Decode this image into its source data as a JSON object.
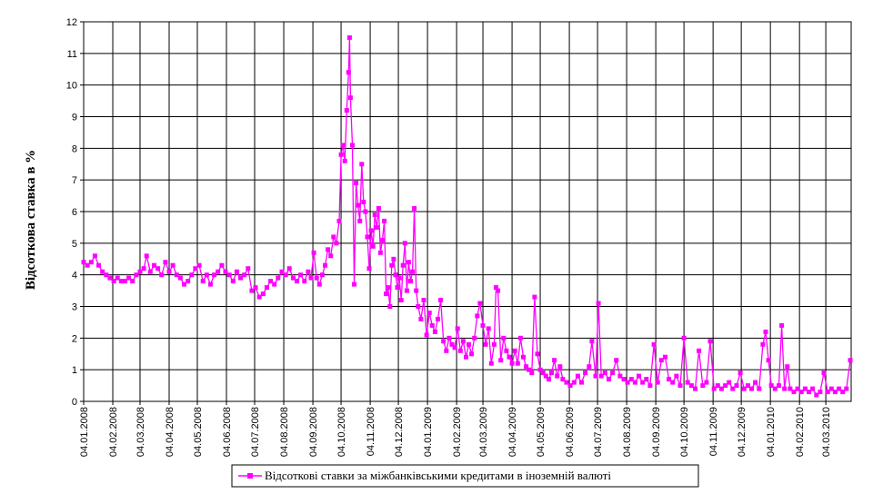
{
  "chart_data": {
    "type": "line",
    "title": "",
    "xlabel": "",
    "ylabel": "Відсоткова ставка в %",
    "ylim": [
      0,
      12
    ],
    "yticks": [
      0,
      1,
      2,
      3,
      4,
      5,
      6,
      7,
      8,
      9,
      10,
      11,
      12
    ],
    "xlim": [
      "2008-01-04",
      "2010-03-31"
    ],
    "xticks": [
      "04.01.2008",
      "04.02.2008",
      "04.03.2008",
      "04.04.2008",
      "04.05.2008",
      "04.06.2008",
      "04.07.2008",
      "04.08.2008",
      "04.09.2008",
      "04.10.2008",
      "04.11.2008",
      "04.12.2008",
      "04.01.2009",
      "04.02.2009",
      "04.03.2009",
      "04.04.2009",
      "04.05.2009",
      "04.06.2009",
      "04.07.2009",
      "04.08.2009",
      "04.09.2009",
      "04.10.2009",
      "04.11.2009",
      "04.12.2009",
      "04.01.2010",
      "04.02.2010",
      "04.03.2010"
    ],
    "grid": true,
    "legend": "bottom",
    "series": [
      {
        "name": "Відсоткові ставки за міжбанківськими кредитами в іноземній валюті",
        "color": "#ff00ff",
        "marker": "square",
        "points": [
          [
            "2008-01-04",
            4.4
          ],
          [
            "2008-01-08",
            4.3
          ],
          [
            "2008-01-12",
            4.4
          ],
          [
            "2008-01-16",
            4.6
          ],
          [
            "2008-01-20",
            4.3
          ],
          [
            "2008-01-24",
            4.1
          ],
          [
            "2008-01-28",
            4.0
          ],
          [
            "2008-02-01",
            3.9
          ],
          [
            "2008-02-05",
            3.8
          ],
          [
            "2008-02-09",
            3.9
          ],
          [
            "2008-02-13",
            3.8
          ],
          [
            "2008-02-17",
            3.8
          ],
          [
            "2008-02-21",
            3.9
          ],
          [
            "2008-02-25",
            3.8
          ],
          [
            "2008-02-29",
            4.0
          ],
          [
            "2008-03-04",
            4.1
          ],
          [
            "2008-03-08",
            4.2
          ],
          [
            "2008-03-11",
            4.6
          ],
          [
            "2008-03-15",
            4.1
          ],
          [
            "2008-03-19",
            4.3
          ],
          [
            "2008-03-23",
            4.2
          ],
          [
            "2008-03-27",
            4.0
          ],
          [
            "2008-03-31",
            4.4
          ],
          [
            "2008-04-04",
            4.1
          ],
          [
            "2008-04-08",
            4.3
          ],
          [
            "2008-04-12",
            4.0
          ],
          [
            "2008-04-16",
            3.9
          ],
          [
            "2008-04-20",
            3.7
          ],
          [
            "2008-04-24",
            3.8
          ],
          [
            "2008-04-28",
            4.0
          ],
          [
            "2008-05-02",
            4.2
          ],
          [
            "2008-05-06",
            4.3
          ],
          [
            "2008-05-10",
            3.8
          ],
          [
            "2008-05-14",
            4.0
          ],
          [
            "2008-05-18",
            3.7
          ],
          [
            "2008-05-22",
            4.0
          ],
          [
            "2008-05-26",
            4.1
          ],
          [
            "2008-05-30",
            4.3
          ],
          [
            "2008-06-03",
            4.1
          ],
          [
            "2008-06-07",
            4.0
          ],
          [
            "2008-06-11",
            3.8
          ],
          [
            "2008-06-15",
            4.1
          ],
          [
            "2008-06-19",
            3.9
          ],
          [
            "2008-06-23",
            4.0
          ],
          [
            "2008-06-27",
            4.2
          ],
          [
            "2008-07-01",
            3.5
          ],
          [
            "2008-07-05",
            3.6
          ],
          [
            "2008-07-09",
            3.3
          ],
          [
            "2008-07-13",
            3.4
          ],
          [
            "2008-07-17",
            3.6
          ],
          [
            "2008-07-21",
            3.8
          ],
          [
            "2008-07-25",
            3.7
          ],
          [
            "2008-07-29",
            3.9
          ],
          [
            "2008-08-02",
            4.1
          ],
          [
            "2008-08-06",
            4.0
          ],
          [
            "2008-08-10",
            4.2
          ],
          [
            "2008-08-14",
            3.9
          ],
          [
            "2008-08-18",
            3.8
          ],
          [
            "2008-08-22",
            4.0
          ],
          [
            "2008-08-26",
            3.8
          ],
          [
            "2008-08-30",
            4.1
          ],
          [
            "2008-09-02",
            3.9
          ],
          [
            "2008-09-05",
            4.7
          ],
          [
            "2008-09-08",
            3.9
          ],
          [
            "2008-09-11",
            3.7
          ],
          [
            "2008-09-14",
            4.0
          ],
          [
            "2008-09-17",
            4.3
          ],
          [
            "2008-09-20",
            4.8
          ],
          [
            "2008-09-23",
            4.6
          ],
          [
            "2008-09-26",
            5.2
          ],
          [
            "2008-09-29",
            5.0
          ],
          [
            "2008-10-02",
            5.7
          ],
          [
            "2008-10-04",
            7.8
          ],
          [
            "2008-10-06",
            8.1
          ],
          [
            "2008-10-08",
            7.6
          ],
          [
            "2008-10-10",
            9.2
          ],
          [
            "2008-10-12",
            10.4
          ],
          [
            "2008-10-13",
            11.5
          ],
          [
            "2008-10-14",
            9.6
          ],
          [
            "2008-10-16",
            8.1
          ],
          [
            "2008-10-18",
            3.7
          ],
          [
            "2008-10-20",
            6.9
          ],
          [
            "2008-10-22",
            6.2
          ],
          [
            "2008-10-24",
            5.7
          ],
          [
            "2008-10-26",
            7.5
          ],
          [
            "2008-10-28",
            6.3
          ],
          [
            "2008-10-30",
            6.0
          ],
          [
            "2008-11-01",
            5.2
          ],
          [
            "2008-11-03",
            4.2
          ],
          [
            "2008-11-05",
            5.4
          ],
          [
            "2008-11-07",
            4.9
          ],
          [
            "2008-11-09",
            5.9
          ],
          [
            "2008-11-11",
            5.5
          ],
          [
            "2008-11-13",
            6.1
          ],
          [
            "2008-11-15",
            4.7
          ],
          [
            "2008-11-17",
            5.1
          ],
          [
            "2008-11-19",
            5.7
          ],
          [
            "2008-11-21",
            3.4
          ],
          [
            "2008-11-23",
            3.6
          ],
          [
            "2008-11-25",
            3.0
          ],
          [
            "2008-11-27",
            4.3
          ],
          [
            "2008-11-29",
            4.5
          ],
          [
            "2008-12-01",
            4.0
          ],
          [
            "2008-12-03",
            3.6
          ],
          [
            "2008-12-05",
            3.9
          ],
          [
            "2008-12-07",
            3.2
          ],
          [
            "2008-12-09",
            4.3
          ],
          [
            "2008-12-11",
            5.0
          ],
          [
            "2008-12-13",
            3.5
          ],
          [
            "2008-12-15",
            4.4
          ],
          [
            "2008-12-17",
            3.8
          ],
          [
            "2008-12-19",
            4.1
          ],
          [
            "2008-12-21",
            6.1
          ],
          [
            "2008-12-23",
            3.5
          ],
          [
            "2008-12-25",
            3.0
          ],
          [
            "2008-12-28",
            2.6
          ],
          [
            "2008-12-31",
            3.2
          ],
          [
            "2009-01-03",
            2.1
          ],
          [
            "2009-01-06",
            2.8
          ],
          [
            "2009-01-09",
            2.4
          ],
          [
            "2009-01-12",
            2.2
          ],
          [
            "2009-01-15",
            2.6
          ],
          [
            "2009-01-18",
            3.2
          ],
          [
            "2009-01-21",
            1.9
          ],
          [
            "2009-01-24",
            1.6
          ],
          [
            "2009-01-27",
            2.0
          ],
          [
            "2009-01-30",
            1.8
          ],
          [
            "2009-02-02",
            1.7
          ],
          [
            "2009-02-05",
            2.3
          ],
          [
            "2009-02-08",
            1.6
          ],
          [
            "2009-02-11",
            1.9
          ],
          [
            "2009-02-14",
            1.4
          ],
          [
            "2009-02-17",
            1.8
          ],
          [
            "2009-02-20",
            1.5
          ],
          [
            "2009-02-23",
            2.0
          ],
          [
            "2009-02-26",
            2.7
          ],
          [
            "2009-03-01",
            3.1
          ],
          [
            "2009-03-04",
            2.4
          ],
          [
            "2009-03-07",
            1.8
          ],
          [
            "2009-03-10",
            2.3
          ],
          [
            "2009-03-13",
            1.2
          ],
          [
            "2009-03-16",
            1.8
          ],
          [
            "2009-03-18",
            3.6
          ],
          [
            "2009-03-20",
            3.5
          ],
          [
            "2009-03-23",
            1.3
          ],
          [
            "2009-03-26",
            2.0
          ],
          [
            "2009-03-29",
            1.6
          ],
          [
            "2009-04-01",
            1.4
          ],
          [
            "2009-04-04",
            1.2
          ],
          [
            "2009-04-07",
            1.6
          ],
          [
            "2009-04-10",
            1.2
          ],
          [
            "2009-04-13",
            2.0
          ],
          [
            "2009-04-16",
            1.4
          ],
          [
            "2009-04-19",
            1.1
          ],
          [
            "2009-04-22",
            1.0
          ],
          [
            "2009-04-25",
            0.9
          ],
          [
            "2009-04-28",
            3.3
          ],
          [
            "2009-05-01",
            1.5
          ],
          [
            "2009-05-04",
            1.0
          ],
          [
            "2009-05-07",
            0.9
          ],
          [
            "2009-05-10",
            0.8
          ],
          [
            "2009-05-13",
            0.7
          ],
          [
            "2009-05-16",
            0.9
          ],
          [
            "2009-05-19",
            1.3
          ],
          [
            "2009-05-22",
            0.8
          ],
          [
            "2009-05-25",
            1.1
          ],
          [
            "2009-05-28",
            0.7
          ],
          [
            "2009-06-01",
            0.6
          ],
          [
            "2009-06-05",
            0.5
          ],
          [
            "2009-06-09",
            0.6
          ],
          [
            "2009-06-13",
            0.8
          ],
          [
            "2009-06-17",
            0.6
          ],
          [
            "2009-06-21",
            0.9
          ],
          [
            "2009-06-25",
            1.1
          ],
          [
            "2009-06-28",
            1.9
          ],
          [
            "2009-07-02",
            0.8
          ],
          [
            "2009-07-05",
            3.1
          ],
          [
            "2009-07-08",
            0.8
          ],
          [
            "2009-07-12",
            0.9
          ],
          [
            "2009-07-16",
            0.7
          ],
          [
            "2009-07-20",
            0.9
          ],
          [
            "2009-07-24",
            1.3
          ],
          [
            "2009-07-28",
            0.8
          ],
          [
            "2009-08-01",
            0.7
          ],
          [
            "2009-08-05",
            0.6
          ],
          [
            "2009-08-09",
            0.7
          ],
          [
            "2009-08-13",
            0.6
          ],
          [
            "2009-08-17",
            0.8
          ],
          [
            "2009-08-21",
            0.6
          ],
          [
            "2009-08-25",
            0.7
          ],
          [
            "2009-08-29",
            0.5
          ],
          [
            "2009-09-02",
            1.8
          ],
          [
            "2009-09-06",
            0.6
          ],
          [
            "2009-09-10",
            1.3
          ],
          [
            "2009-09-14",
            1.4
          ],
          [
            "2009-09-18",
            0.7
          ],
          [
            "2009-09-22",
            0.6
          ],
          [
            "2009-09-26",
            0.8
          ],
          [
            "2009-09-30",
            0.5
          ],
          [
            "2009-10-04",
            2.0
          ],
          [
            "2009-10-08",
            0.6
          ],
          [
            "2009-10-12",
            0.5
          ],
          [
            "2009-10-16",
            0.4
          ],
          [
            "2009-10-20",
            1.6
          ],
          [
            "2009-10-24",
            0.5
          ],
          [
            "2009-10-28",
            0.6
          ],
          [
            "2009-11-01",
            1.9
          ],
          [
            "2009-11-05",
            0.4
          ],
          [
            "2009-11-09",
            0.5
          ],
          [
            "2009-11-13",
            0.4
          ],
          [
            "2009-11-17",
            0.5
          ],
          [
            "2009-11-21",
            0.6
          ],
          [
            "2009-11-25",
            0.4
          ],
          [
            "2009-11-29",
            0.5
          ],
          [
            "2009-12-03",
            0.9
          ],
          [
            "2009-12-07",
            0.4
          ],
          [
            "2009-12-11",
            0.5
          ],
          [
            "2009-12-15",
            0.4
          ],
          [
            "2009-12-19",
            0.6
          ],
          [
            "2009-12-23",
            0.4
          ],
          [
            "2009-12-27",
            1.8
          ],
          [
            "2009-12-30",
            2.2
          ],
          [
            "2010-01-02",
            1.3
          ],
          [
            "2010-01-05",
            0.5
          ],
          [
            "2010-01-09",
            0.4
          ],
          [
            "2010-01-13",
            0.5
          ],
          [
            "2010-01-16",
            2.4
          ],
          [
            "2010-01-19",
            0.4
          ],
          [
            "2010-01-22",
            1.1
          ],
          [
            "2010-01-25",
            0.4
          ],
          [
            "2010-01-29",
            0.3
          ],
          [
            "2010-02-02",
            0.4
          ],
          [
            "2010-02-06",
            0.3
          ],
          [
            "2010-02-10",
            0.4
          ],
          [
            "2010-02-14",
            0.3
          ],
          [
            "2010-02-18",
            0.4
          ],
          [
            "2010-02-22",
            0.2
          ],
          [
            "2010-02-26",
            0.3
          ],
          [
            "2010-03-02",
            0.9
          ],
          [
            "2010-03-06",
            0.3
          ],
          [
            "2010-03-10",
            0.4
          ],
          [
            "2010-03-14",
            0.3
          ],
          [
            "2010-03-18",
            0.4
          ],
          [
            "2010-03-22",
            0.3
          ],
          [
            "2010-03-26",
            0.4
          ],
          [
            "2010-03-30",
            1.3
          ]
        ]
      }
    ]
  }
}
